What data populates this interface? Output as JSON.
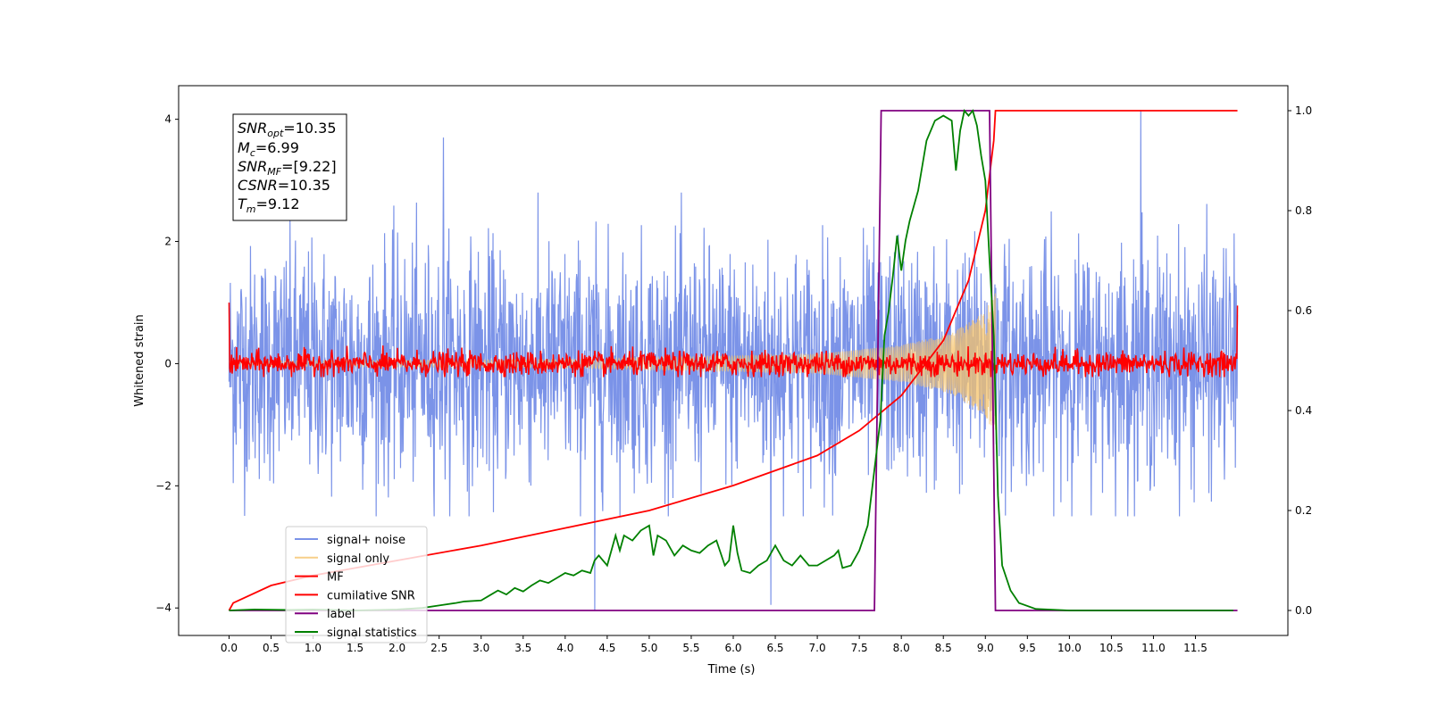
{
  "chart_data": {
    "type": "line",
    "xlabel": "Time (s)",
    "ylabel": "Whitened strain",
    "xlim": [
      -0.6,
      12.6
    ],
    "ylim_left": [
      -4.45,
      4.55
    ],
    "ylim_right": [
      -0.05,
      1.05
    ],
    "x_ticks": [
      "0.0",
      "0.5",
      "1.0",
      "1.5",
      "2.0",
      "2.5",
      "3.0",
      "3.5",
      "4.0",
      "4.5",
      "5.0",
      "5.5",
      "6.0",
      "6.5",
      "7.0",
      "7.5",
      "8.0",
      "8.5",
      "9.0",
      "9.5",
      "10.0",
      "10.5",
      "11.0",
      "11.5"
    ],
    "y_ticks_left": [
      "−4",
      "−2",
      "0",
      "2",
      "4"
    ],
    "y_ticks_right": [
      "0.0",
      "0.2",
      "0.4",
      "0.6",
      "0.8",
      "1.0"
    ],
    "legend_position": "lower-left",
    "info_box": {
      "snr_opt": {
        "base": "SNR",
        "sub": "opt",
        "value": "=10.35"
      },
      "mc": {
        "base": "M",
        "sub": "c",
        "value": "=6.99"
      },
      "snr_mf": {
        "base": "SNR",
        "sub": "MF",
        "value": "=[9.22]"
      },
      "csnr": {
        "base": "CSNR",
        "value": "=10.35"
      },
      "tm": {
        "base": "T",
        "sub": "m",
        "value": "=9.12"
      }
    },
    "series": [
      {
        "name": "signal+ noise",
        "color": "#7b93e8",
        "axis": "left",
        "kind": "noise",
        "x_range": [
          0.0,
          12.0
        ],
        "typical_range": [
          -2.5,
          2.8
        ],
        "spikes": [
          {
            "x": 4.35,
            "y": -4.05
          },
          {
            "x": 6.45,
            "y": -3.95
          },
          {
            "x": 10.85,
            "y": -3.9
          },
          {
            "x": 10.85,
            "y": 4.15
          },
          {
            "x": 2.55,
            "y": 3.7
          }
        ]
      },
      {
        "name": "signal only",
        "color": "#f5c36b",
        "axis": "left",
        "kind": "chirp",
        "t_start": 0.0,
        "t_merge": 9.12,
        "envelope": [
          [
            0.0,
            0.04
          ],
          [
            4.0,
            0.07
          ],
          [
            7.0,
            0.16
          ],
          [
            8.0,
            0.3
          ],
          [
            8.6,
            0.5
          ],
          [
            9.0,
            0.85
          ],
          [
            9.12,
            1.2
          ]
        ]
      },
      {
        "name": "MF",
        "color": "#ff0000",
        "axis": "left",
        "kind": "noise-small",
        "x_range": [
          0.0,
          12.0
        ],
        "typical_range": [
          -0.2,
          0.25
        ]
      },
      {
        "name": "cumilative SNR",
        "color": "#ff0000",
        "axis": "right",
        "x": [
          0.0,
          0.05,
          0.5,
          1.0,
          2.0,
          3.0,
          4.0,
          5.0,
          6.0,
          7.0,
          7.5,
          8.0,
          8.5,
          8.8,
          9.0,
          9.1,
          9.12,
          12.0
        ],
        "y": [
          0.0,
          0.015,
          0.05,
          0.07,
          0.1,
          0.13,
          0.165,
          0.2,
          0.25,
          0.31,
          0.36,
          0.43,
          0.54,
          0.66,
          0.8,
          0.94,
          1.0,
          1.0
        ]
      },
      {
        "name": "label",
        "color": "#800080",
        "axis": "right",
        "x": [
          0.0,
          7.68,
          7.76,
          9.05,
          9.12,
          12.0
        ],
        "y": [
          0.0,
          0.0,
          1.0,
          1.0,
          0.0,
          0.0
        ]
      },
      {
        "name": "signal statistics",
        "color": "#008000",
        "axis": "right",
        "x": [
          0.0,
          0.3,
          0.7,
          1.0,
          1.5,
          2.0,
          2.3,
          2.5,
          2.7,
          2.8,
          3.0,
          3.1,
          3.2,
          3.3,
          3.4,
          3.5,
          3.6,
          3.7,
          3.8,
          3.9,
          4.0,
          4.1,
          4.2,
          4.3,
          4.35,
          4.4,
          4.5,
          4.6,
          4.65,
          4.7,
          4.8,
          4.9,
          5.0,
          5.05,
          5.1,
          5.2,
          5.3,
          5.4,
          5.5,
          5.6,
          5.7,
          5.8,
          5.9,
          5.95,
          6.0,
          6.05,
          6.1,
          6.2,
          6.3,
          6.4,
          6.5,
          6.6,
          6.7,
          6.8,
          6.9,
          7.0,
          7.1,
          7.2,
          7.25,
          7.3,
          7.4,
          7.5,
          7.6,
          7.7,
          7.75,
          7.8,
          7.85,
          7.9,
          7.95,
          8.0,
          8.05,
          8.1,
          8.2,
          8.3,
          8.4,
          8.5,
          8.6,
          8.65,
          8.7,
          8.75,
          8.8,
          8.85,
          8.9,
          8.95,
          9.0,
          9.05,
          9.1,
          9.15,
          9.2,
          9.3,
          9.4,
          9.6,
          10.0,
          11.0,
          11.95
        ],
        "y": [
          0.0,
          0.002,
          0.001,
          0.002,
          0.0,
          0.002,
          0.005,
          0.01,
          0.015,
          0.018,
          0.02,
          0.03,
          0.04,
          0.032,
          0.045,
          0.038,
          0.05,
          0.06,
          0.055,
          0.065,
          0.075,
          0.07,
          0.08,
          0.075,
          0.1,
          0.11,
          0.09,
          0.15,
          0.12,
          0.15,
          0.14,
          0.16,
          0.17,
          0.11,
          0.15,
          0.14,
          0.11,
          0.13,
          0.12,
          0.115,
          0.13,
          0.14,
          0.09,
          0.1,
          0.17,
          0.115,
          0.08,
          0.075,
          0.09,
          0.1,
          0.13,
          0.1,
          0.09,
          0.11,
          0.09,
          0.09,
          0.1,
          0.11,
          0.12,
          0.085,
          0.09,
          0.12,
          0.17,
          0.31,
          0.38,
          0.55,
          0.6,
          0.67,
          0.75,
          0.68,
          0.74,
          0.78,
          0.84,
          0.94,
          0.98,
          0.99,
          0.98,
          0.88,
          0.96,
          1.0,
          0.99,
          1.0,
          0.97,
          0.91,
          0.86,
          0.7,
          0.55,
          0.23,
          0.09,
          0.04,
          0.015,
          0.003,
          0.0,
          0.0,
          0.0
        ]
      }
    ]
  }
}
